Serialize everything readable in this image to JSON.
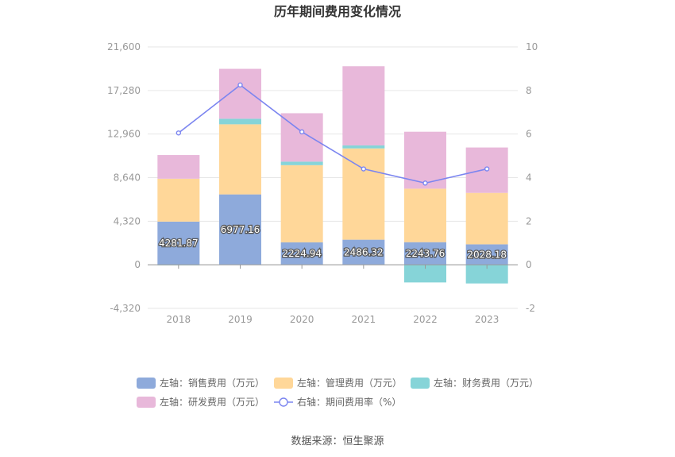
{
  "chart_data": {
    "type": "bar",
    "title": "历年期间费用变化情况",
    "categories": [
      "2018",
      "2019",
      "2020",
      "2021",
      "2022",
      "2023"
    ],
    "left_axis": {
      "ticks": [
        "21,600",
        "17,280",
        "12,960",
        "8,640",
        "4,320",
        "0",
        "-4,320"
      ],
      "ylim": [
        -4320,
        21600
      ]
    },
    "right_axis": {
      "ticks": [
        "10",
        "8",
        "6",
        "4",
        "2",
        "0",
        "-2"
      ],
      "ylim": [
        -2,
        10
      ]
    },
    "series": [
      {
        "name": "左轴：销售费用（万元）",
        "kind": "bar",
        "axis": "left",
        "color": "#8eaadb",
        "values": [
          4281.87,
          6977.16,
          2224.94,
          2486.32,
          2243.76,
          2028.18
        ],
        "labels": [
          "4281.87",
          "6977.16",
          "2224.94",
          "2486.32",
          "2243.76",
          "2028.18"
        ]
      },
      {
        "name": "左轴：管理费用（万元）",
        "kind": "bar",
        "axis": "left",
        "color": "#ffd799",
        "values": [
          4250,
          6950,
          7650,
          9050,
          5300,
          5100
        ]
      },
      {
        "name": "左轴：财务费用（万元）",
        "kind": "bar",
        "axis": "left",
        "color": "#86d4d8",
        "values": [
          -50,
          550,
          350,
          300,
          -1750,
          -1850
        ]
      },
      {
        "name": "左轴：研发费用（万元）",
        "kind": "bar",
        "axis": "left",
        "color": "#e8b8da",
        "values": [
          2350,
          4950,
          4800,
          7850,
          5650,
          4500
        ]
      },
      {
        "name": "右轴：期间费用率（%）",
        "kind": "line",
        "axis": "right",
        "color": "#7b85f0",
        "values": [
          6.05,
          8.25,
          6.1,
          4.4,
          3.75,
          4.4
        ]
      }
    ],
    "grid": true,
    "legend_position": "bottom"
  },
  "source_text": "数据来源：恒生聚源"
}
